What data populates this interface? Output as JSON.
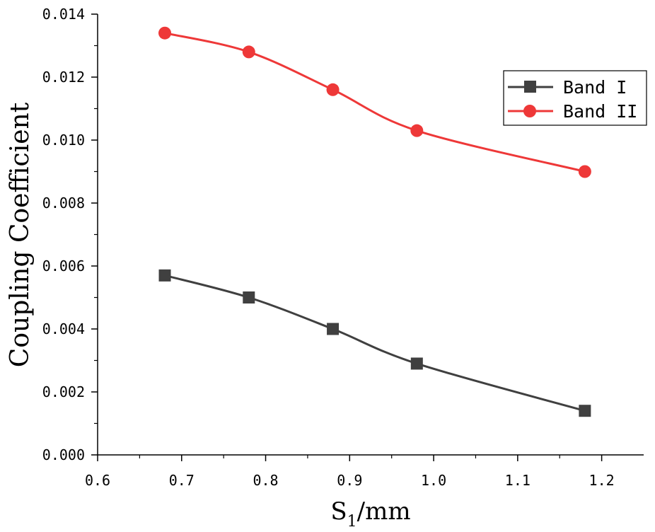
{
  "chart_data": {
    "type": "line",
    "xlabel_main": "S",
    "xlabel_sub": "1",
    "xlabel_unit": "/mm",
    "ylabel": "Coupling Coefficient",
    "xlim": [
      0.6,
      1.25
    ],
    "ylim": [
      0.0,
      0.014
    ],
    "x_ticks": [
      "0.6",
      "0.7",
      "0.8",
      "0.9",
      "1.0",
      "1.1",
      "1.2"
    ],
    "y_ticks": [
      "0.000",
      "0.002",
      "0.004",
      "0.006",
      "0.008",
      "0.010",
      "0.012",
      "0.014"
    ],
    "grid": false,
    "legend_position": "top-right",
    "series": [
      {
        "name": "Band I",
        "color": "#404040",
        "marker": "square",
        "x": [
          0.68,
          0.78,
          0.88,
          0.98,
          1.18
        ],
        "y": [
          0.0057,
          0.005,
          0.004,
          0.0029,
          0.0014
        ]
      },
      {
        "name": "Band II",
        "color": "#ee3838",
        "marker": "circle",
        "x": [
          0.68,
          0.78,
          0.88,
          0.98,
          1.18
        ],
        "y": [
          0.0134,
          0.0128,
          0.0116,
          0.0103,
          0.009
        ]
      }
    ]
  }
}
